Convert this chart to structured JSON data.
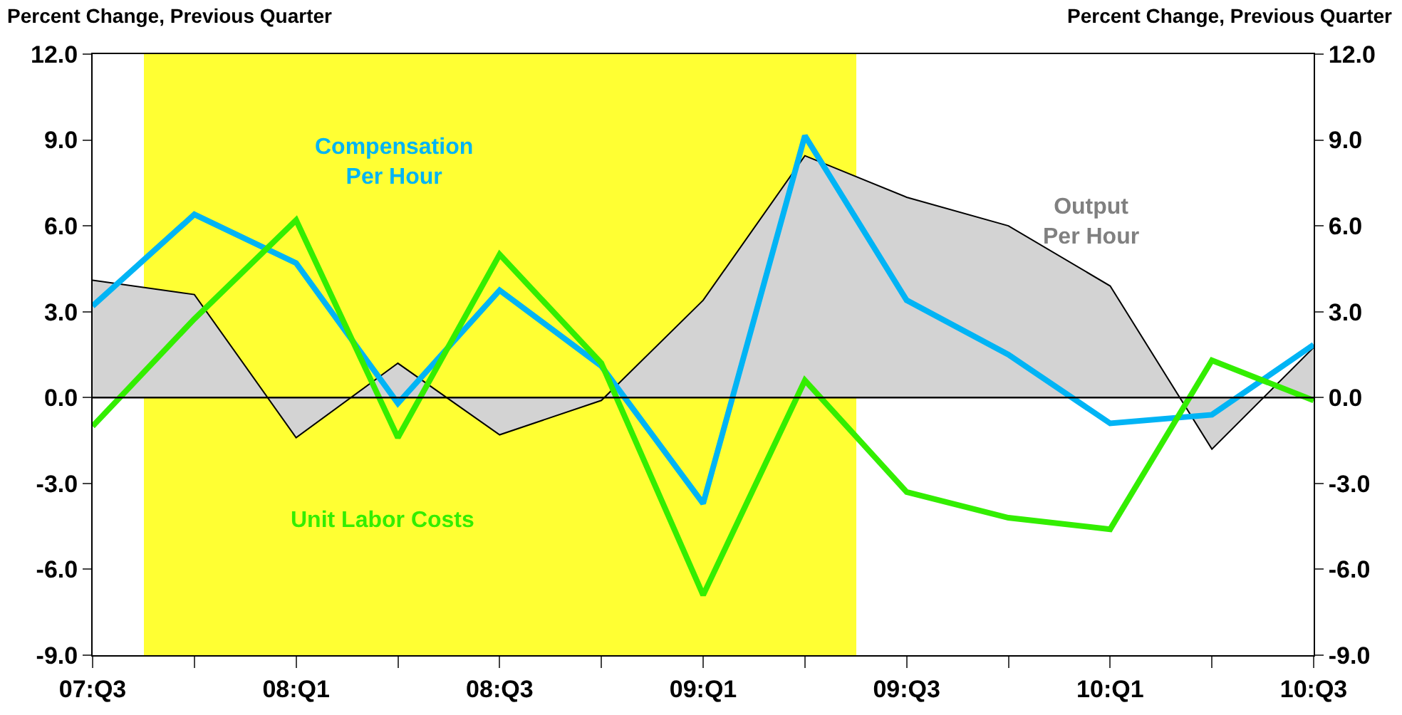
{
  "chart_data": {
    "type": "line",
    "ylabel": "Percent Change, Previous Quarter",
    "y2label": "Percent Change, Previous Quarter",
    "categories": [
      "07:Q3",
      null,
      "08:Q1",
      null,
      "08:Q3",
      null,
      "09:Q1",
      null,
      "09:Q3",
      null,
      "10:Q1",
      null,
      "10:Q3"
    ],
    "ylim": [
      -9,
      12
    ],
    "yticks": [
      {
        "value": -9,
        "label": "-9.0"
      },
      {
        "value": -6,
        "label": "-6.0"
      },
      {
        "value": -3,
        "label": "-3.0"
      },
      {
        "value": 0,
        "label": "0.0"
      },
      {
        "value": 3,
        "label": "3.0"
      },
      {
        "value": 6,
        "label": "6.0"
      },
      {
        "value": 9,
        "label": "9.0"
      },
      {
        "value": 12,
        "label": "12.0"
      }
    ],
    "y2lim": [
      -9,
      12
    ],
    "y2ticks": [
      {
        "value": -9,
        "label": "-9.0"
      },
      {
        "value": -6,
        "label": "-6.0"
      },
      {
        "value": -3,
        "label": "-3.0"
      },
      {
        "value": 0,
        "label": "0.0"
      },
      {
        "value": 3,
        "label": "3.0"
      },
      {
        "value": 6,
        "label": "6.0"
      },
      {
        "value": 9,
        "label": "9.0"
      },
      {
        "value": 12,
        "label": "12.0"
      }
    ],
    "series": [
      {
        "name": "Output\nPer Hour",
        "type": "area",
        "color": "#d3d3d3",
        "values": [
          4.1,
          3.6,
          -1.4,
          1.2,
          -1.3,
          -0.1,
          3.4,
          8.45,
          7.0,
          6.0,
          3.9,
          -1.8,
          1.75
        ]
      },
      {
        "name": "Compensation\nPer Hour",
        "color": "#00b4f5",
        "values": [
          3.2,
          6.4,
          4.7,
          -0.2,
          3.75,
          1.1,
          -3.7,
          9.15,
          3.4,
          1.5,
          -0.9,
          -0.6,
          1.85
        ]
      },
      {
        "name": "Unit Labor Costs",
        "color": "#33ee00",
        "values": [
          -1.0,
          2.75,
          6.2,
          -1.4,
          5.0,
          1.2,
          -6.9,
          0.6,
          -3.3,
          -4.2,
          -4.6,
          1.3,
          -0.1
        ]
      }
    ],
    "ref_lines": [
      {
        "axis": "y",
        "value": 0,
        "color": "#000000"
      }
    ],
    "grid": false,
    "legend": false,
    "marker": "none",
    "line_style": "solid"
  }
}
